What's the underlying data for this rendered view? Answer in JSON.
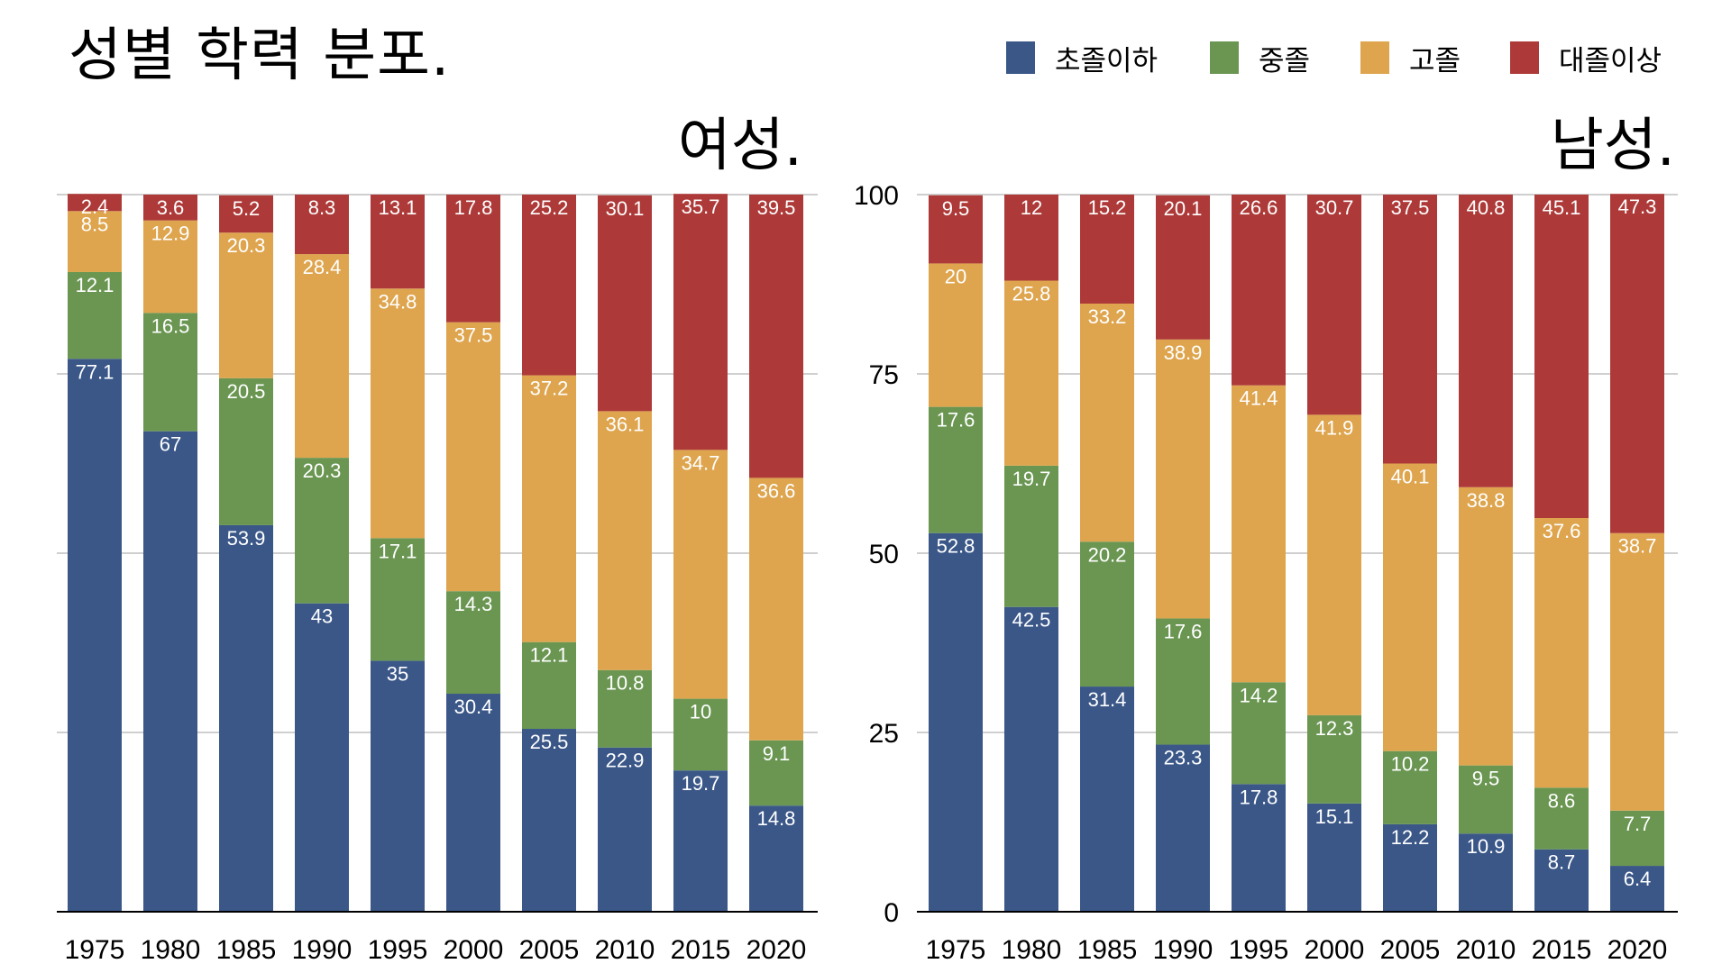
{
  "title": "성별 학력 분포.",
  "legend": [
    {
      "label": "초졸이하",
      "color": "#3a5788"
    },
    {
      "label": "중졸",
      "color": "#6a9652"
    },
    {
      "label": "고졸",
      "color": "#dea54e"
    },
    {
      "label": "대졸이상",
      "color": "#ad3a38"
    }
  ],
  "chart_data": [
    {
      "type": "bar",
      "stacked": true,
      "title": "여성.",
      "xlabel": "",
      "ylabel": "",
      "ylim": [
        0,
        100
      ],
      "yticks": [],
      "grid": true,
      "legend_position": "top-right",
      "categories": [
        "1975",
        "1980",
        "1985",
        "1990",
        "1995",
        "2000",
        "2005",
        "2010",
        "2015",
        "2020"
      ],
      "series": [
        {
          "name": "초졸이하",
          "values": [
            77.1,
            67,
            53.9,
            43,
            35,
            30.4,
            25.5,
            22.9,
            19.7,
            14.8
          ]
        },
        {
          "name": "중졸",
          "values": [
            12.1,
            16.5,
            20.5,
            20.3,
            17.1,
            14.3,
            12.1,
            10.8,
            10,
            9.1
          ]
        },
        {
          "name": "고졸",
          "values": [
            8.5,
            12.9,
            20.3,
            28.4,
            34.8,
            37.5,
            37.2,
            36.1,
            34.7,
            36.6
          ]
        },
        {
          "name": "대졸이상",
          "values": [
            2.4,
            3.6,
            5.2,
            8.3,
            13.1,
            17.8,
            25.2,
            30.1,
            35.7,
            39.5
          ]
        }
      ]
    },
    {
      "type": "bar",
      "stacked": true,
      "title": "남성.",
      "xlabel": "",
      "ylabel": "",
      "ylim": [
        0,
        100
      ],
      "yticks": [
        "0",
        "25",
        "50",
        "75",
        "100"
      ],
      "grid": true,
      "legend_position": "top-right",
      "categories": [
        "1975",
        "1980",
        "1985",
        "1990",
        "1995",
        "2000",
        "2005",
        "2010",
        "2015",
        "2020"
      ],
      "series": [
        {
          "name": "초졸이하",
          "values": [
            52.8,
            42.5,
            31.4,
            23.3,
            17.8,
            15.1,
            12.2,
            10.9,
            8.7,
            6.4
          ]
        },
        {
          "name": "중졸",
          "values": [
            17.6,
            19.7,
            20.2,
            17.6,
            14.2,
            12.3,
            10.2,
            9.5,
            8.6,
            7.7
          ]
        },
        {
          "name": "고졸",
          "values": [
            20,
            25.8,
            33.2,
            38.9,
            41.4,
            41.9,
            40.1,
            38.8,
            37.6,
            38.7
          ]
        },
        {
          "name": "대졸이상",
          "values": [
            9.5,
            12,
            15.2,
            20.1,
            26.6,
            30.7,
            37.5,
            40.8,
            45.1,
            47.3
          ]
        }
      ]
    }
  ]
}
